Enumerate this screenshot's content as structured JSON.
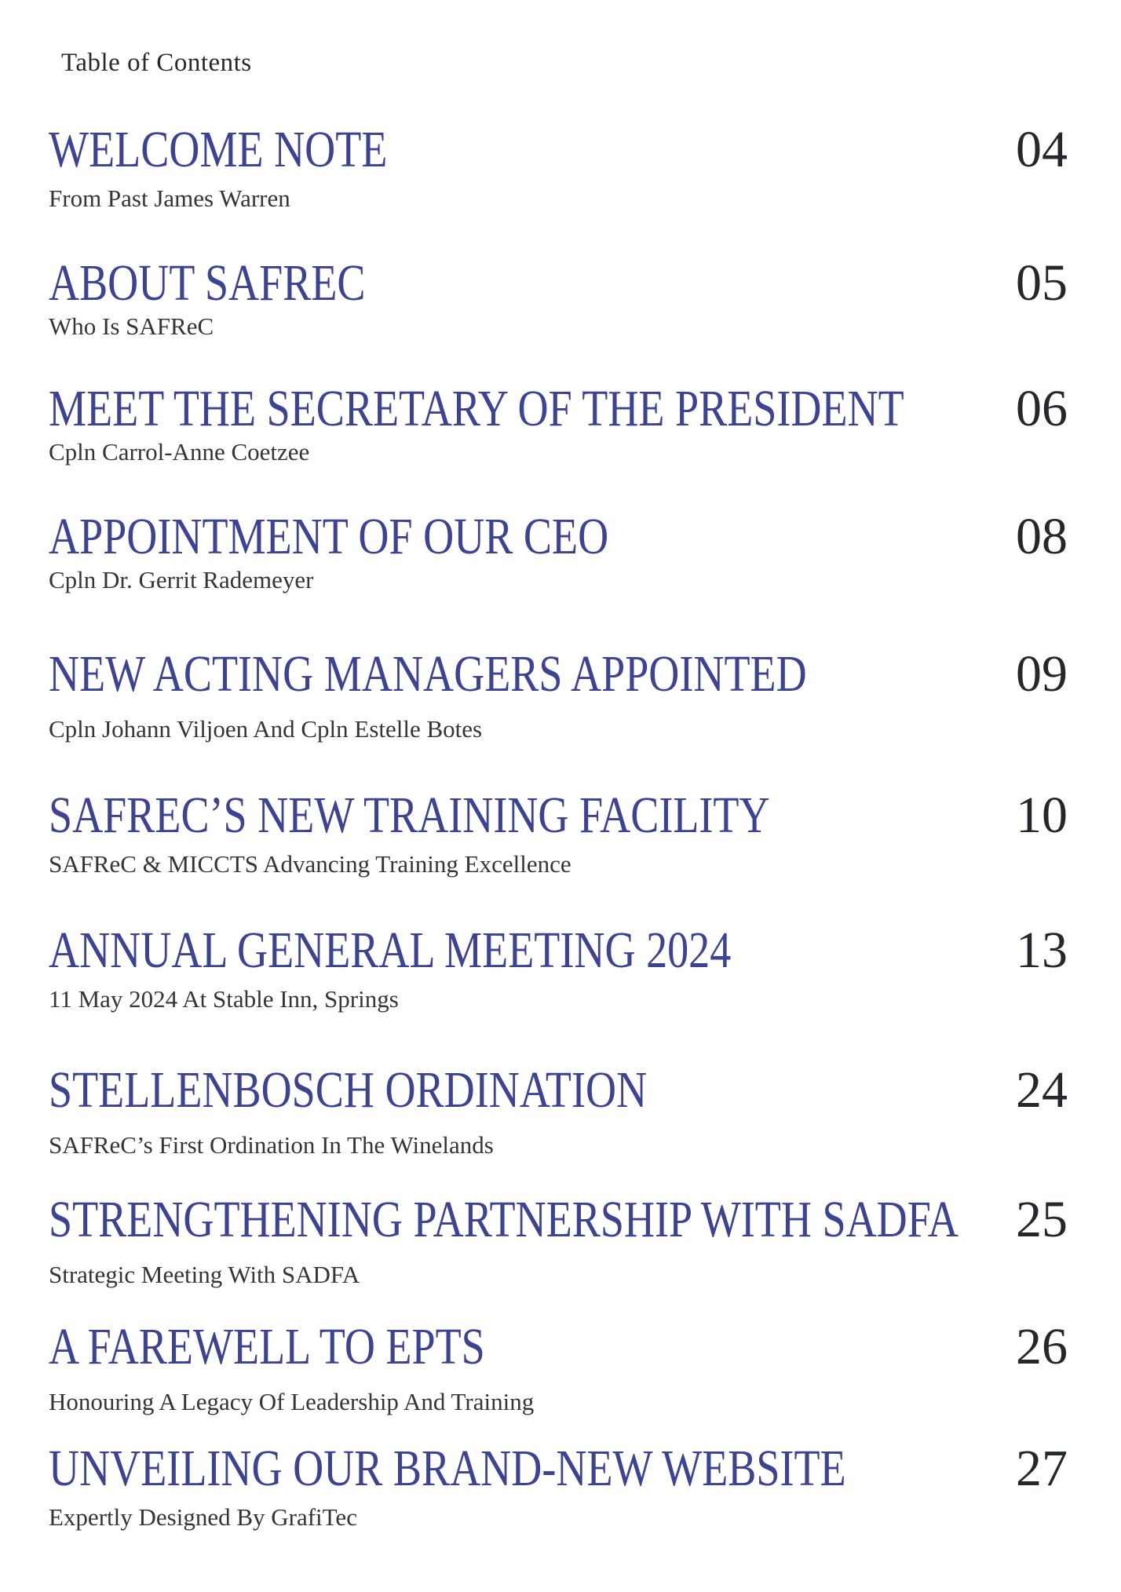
{
  "page": {
    "header": "Table of Contents"
  },
  "colors": {
    "title_blue": "#3c4294",
    "ink_dark": "#24272c",
    "subtitle_gray": "#32353a",
    "background": "#ffffff"
  },
  "toc": {
    "entries": [
      {
        "title": "WELCOME NOTE",
        "subtitle": "From Past James Warren",
        "page": "04"
      },
      {
        "title": "ABOUT SAFREC",
        "subtitle": "Who Is SAFReC",
        "page": "05"
      },
      {
        "title": "MEET THE SECRETARY OF THE PRESIDENT",
        "subtitle": "Cpln Carrol-Anne Coetzee",
        "page": "06"
      },
      {
        "title": "APPOINTMENT OF OUR CEO",
        "subtitle": "Cpln Dr. Gerrit Rademeyer",
        "page": "08"
      },
      {
        "title": "NEW ACTING MANAGERS APPOINTED",
        "subtitle": "Cpln Johann Viljoen And Cpln Estelle Botes",
        "page": "09"
      },
      {
        "title": "SAFREC’S NEW TRAINING FACILITY",
        "subtitle": "SAFReC & MICCTS Advancing Training Excellence",
        "page": "10"
      },
      {
        "title": "ANNUAL GENERAL MEETING 2024",
        "subtitle": "11 May 2024 At Stable Inn, Springs",
        "page": "13"
      },
      {
        "title": "STELLENBOSCH ORDINATION",
        "subtitle": "SAFReC’s First Ordination In The Winelands",
        "page": "24"
      },
      {
        "title": "STRENGTHENING PARTNERSHIP WITH SADFA",
        "subtitle": "Strategic Meeting With SADFA",
        "page": "25"
      },
      {
        "title": "A FAREWELL TO EPTS",
        "subtitle": "Honouring A Legacy Of Leadership And Training",
        "page": "26"
      },
      {
        "title": "UNVEILING OUR BRAND-NEW WEBSITE",
        "subtitle": "Expertly Designed By GrafiTec",
        "page": "27"
      }
    ]
  }
}
